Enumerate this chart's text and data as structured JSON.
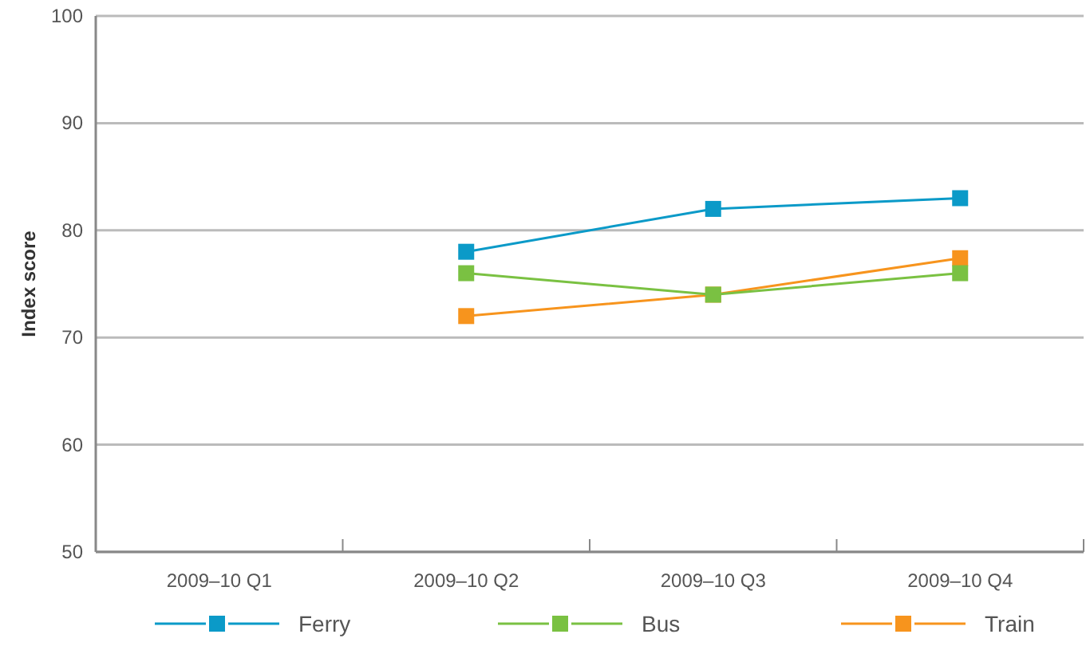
{
  "chart_data": {
    "type": "line",
    "ylabel": "Index score",
    "categories": [
      "2009–10 Q1",
      "2009–10 Q2",
      "2009–10 Q3",
      "2009–10 Q4"
    ],
    "series": [
      {
        "name": "Ferry",
        "color": "#0b9ac8",
        "values": [
          null,
          78,
          82,
          83
        ]
      },
      {
        "name": "Bus",
        "color": "#7ac142",
        "values": [
          null,
          76,
          74,
          76
        ]
      },
      {
        "name": "Train",
        "color": "#f7941d",
        "values": [
          null,
          72,
          74,
          77.4
        ]
      }
    ],
    "ylim": [
      50,
      100
    ],
    "yticks": [
      50,
      60,
      70,
      80,
      90,
      100
    ],
    "grid": "y",
    "legend": "bottom",
    "marker": "square",
    "line_style": "solid"
  }
}
